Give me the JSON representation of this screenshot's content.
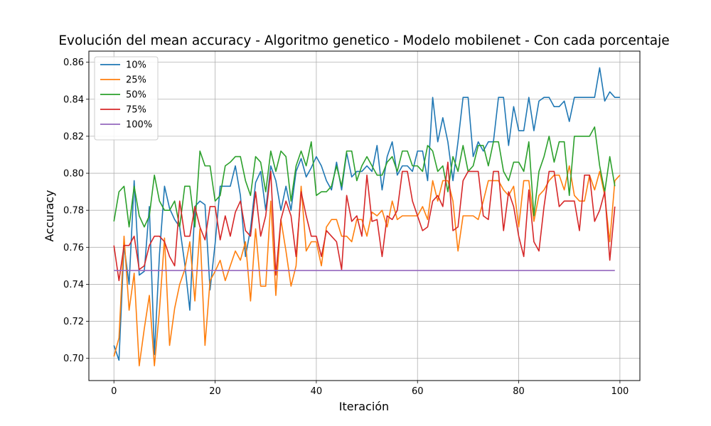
{
  "chart_data": {
    "type": "line",
    "title": "Evolución del mean accuracy - Algoritmo genetico - Modelo mobilenet - Con cada porcentaje",
    "xlabel": "Iteración",
    "ylabel": "Accuracy",
    "xlim": [
      -4.95,
      103.95
    ],
    "ylim": [
      0.688,
      0.866
    ],
    "xticks": [
      0,
      20,
      40,
      60,
      80,
      100
    ],
    "xtick_labels": [
      "0",
      "20",
      "40",
      "60",
      "80",
      "100"
    ],
    "yticks": [
      0.7,
      0.72,
      0.74,
      0.76,
      0.78,
      0.8,
      0.82,
      0.84,
      0.86
    ],
    "ytick_labels": [
      "0.70",
      "0.72",
      "0.74",
      "0.76",
      "0.78",
      "0.80",
      "0.82",
      "0.84",
      "0.86"
    ],
    "grid": true,
    "legend_position": "top-left",
    "series": [
      {
        "name": "10%",
        "color": "#1f77b4",
        "values": [
          0.707,
          0.699,
          0.761,
          0.74,
          0.796,
          0.745,
          0.747,
          0.782,
          0.702,
          0.756,
          0.793,
          0.781,
          0.775,
          0.771,
          0.751,
          0.726,
          0.782,
          0.785,
          0.783,
          0.737,
          0.762,
          0.793,
          0.793,
          0.793,
          0.804,
          0.788,
          0.755,
          0.77,
          0.795,
          0.801,
          0.78,
          0.804,
          0.796,
          0.78,
          0.793,
          0.78,
          0.801,
          0.808,
          0.798,
          0.803,
          0.809,
          0.804,
          0.796,
          0.791,
          0.806,
          0.791,
          0.811,
          0.798,
          0.801,
          0.801,
          0.804,
          0.801,
          0.815,
          0.791,
          0.809,
          0.817,
          0.799,
          0.804,
          0.804,
          0.801,
          0.812,
          0.812,
          0.796,
          0.841,
          0.817,
          0.83,
          0.817,
          0.796,
          0.817,
          0.841,
          0.841,
          0.809,
          0.817,
          0.812,
          0.817,
          0.817,
          0.841,
          0.841,
          0.815,
          0.836,
          0.823,
          0.823,
          0.841,
          0.823,
          0.839,
          0.841,
          0.841,
          0.836,
          0.836,
          0.839,
          0.828,
          0.841,
          0.841,
          0.841,
          0.841,
          0.841,
          0.857,
          0.839,
          0.844,
          0.841,
          0.841
        ]
      },
      {
        "name": "25%",
        "color": "#ff7f0e",
        "values": [
          0.701,
          0.711,
          0.766,
          0.726,
          0.746,
          0.696,
          0.716,
          0.734,
          0.696,
          0.726,
          0.765,
          0.707,
          0.727,
          0.74,
          0.748,
          0.763,
          0.731,
          0.77,
          0.707,
          0.742,
          0.747,
          0.753,
          0.742,
          0.75,
          0.758,
          0.753,
          0.763,
          0.731,
          0.77,
          0.739,
          0.739,
          0.785,
          0.734,
          0.775,
          0.758,
          0.739,
          0.75,
          0.793,
          0.758,
          0.763,
          0.763,
          0.75,
          0.771,
          0.775,
          0.775,
          0.766,
          0.766,
          0.763,
          0.775,
          0.775,
          0.766,
          0.779,
          0.777,
          0.78,
          0.771,
          0.785,
          0.775,
          0.777,
          0.777,
          0.777,
          0.777,
          0.782,
          0.775,
          0.796,
          0.785,
          0.796,
          0.796,
          0.785,
          0.758,
          0.777,
          0.777,
          0.777,
          0.775,
          0.785,
          0.796,
          0.796,
          0.796,
          0.791,
          0.788,
          0.793,
          0.771,
          0.796,
          0.796,
          0.774,
          0.788,
          0.791,
          0.796,
          0.799,
          0.799,
          0.791,
          0.804,
          0.788,
          0.785,
          0.785,
          0.799,
          0.791,
          0.801,
          0.788,
          0.763,
          0.796,
          0.799
        ]
      },
      {
        "name": "50%",
        "color": "#2ca02c",
        "values": [
          0.774,
          0.79,
          0.793,
          0.771,
          0.793,
          0.777,
          0.771,
          0.777,
          0.799,
          0.785,
          0.78,
          0.78,
          0.785,
          0.771,
          0.793,
          0.793,
          0.771,
          0.812,
          0.804,
          0.804,
          0.785,
          0.788,
          0.804,
          0.806,
          0.809,
          0.809,
          0.796,
          0.788,
          0.809,
          0.806,
          0.79,
          0.812,
          0.801,
          0.812,
          0.809,
          0.785,
          0.804,
          0.812,
          0.804,
          0.817,
          0.788,
          0.79,
          0.79,
          0.793,
          0.804,
          0.793,
          0.812,
          0.812,
          0.796,
          0.804,
          0.809,
          0.804,
          0.799,
          0.799,
          0.806,
          0.809,
          0.801,
          0.812,
          0.812,
          0.804,
          0.804,
          0.801,
          0.815,
          0.812,
          0.801,
          0.804,
          0.79,
          0.809,
          0.801,
          0.815,
          0.801,
          0.804,
          0.815,
          0.815,
          0.804,
          0.817,
          0.817,
          0.801,
          0.796,
          0.806,
          0.806,
          0.801,
          0.817,
          0.777,
          0.801,
          0.809,
          0.82,
          0.806,
          0.817,
          0.817,
          0.788,
          0.82,
          0.82,
          0.82,
          0.82,
          0.825,
          0.804,
          0.79,
          0.809,
          0.793
        ]
      },
      {
        "name": "75%",
        "color": "#d62728",
        "values": [
          0.761,
          0.742,
          0.761,
          0.761,
          0.766,
          0.748,
          0.75,
          0.761,
          0.766,
          0.766,
          0.763,
          0.755,
          0.75,
          0.785,
          0.766,
          0.766,
          0.782,
          0.771,
          0.764,
          0.782,
          0.782,
          0.764,
          0.777,
          0.766,
          0.779,
          0.785,
          0.769,
          0.766,
          0.79,
          0.766,
          0.777,
          0.801,
          0.745,
          0.775,
          0.785,
          0.777,
          0.755,
          0.79,
          0.777,
          0.766,
          0.766,
          0.755,
          0.769,
          0.766,
          0.763,
          0.748,
          0.788,
          0.774,
          0.777,
          0.766,
          0.799,
          0.774,
          0.775,
          0.755,
          0.777,
          0.775,
          0.78,
          0.801,
          0.801,
          0.785,
          0.777,
          0.769,
          0.771,
          0.785,
          0.788,
          0.782,
          0.806,
          0.769,
          0.771,
          0.796,
          0.801,
          0.801,
          0.801,
          0.777,
          0.775,
          0.801,
          0.801,
          0.769,
          0.79,
          0.782,
          0.766,
          0.755,
          0.791,
          0.763,
          0.758,
          0.782,
          0.801,
          0.801,
          0.782,
          0.785,
          0.785,
          0.785,
          0.769,
          0.799,
          0.799,
          0.774,
          0.78,
          0.79,
          0.753,
          0.782
        ]
      },
      {
        "name": "100%",
        "color": "#9467bd",
        "values": [
          0.7475,
          0.7475,
          0.7475,
          0.7475,
          0.7475,
          0.7475,
          0.7475,
          0.7475,
          0.7475,
          0.7475,
          0.7475,
          0.7475,
          0.7475,
          0.7475,
          0.7475,
          0.7475,
          0.7475,
          0.7475,
          0.7475,
          0.7475,
          0.7475,
          0.7475,
          0.7475,
          0.7475,
          0.7475,
          0.7475,
          0.7475,
          0.7475,
          0.7475,
          0.7475,
          0.7475,
          0.7475,
          0.7475,
          0.7475,
          0.7475,
          0.7475,
          0.7475,
          0.7475,
          0.7475,
          0.7475,
          0.7475,
          0.7475,
          0.7475,
          0.7475,
          0.7475,
          0.7475,
          0.7475,
          0.7475,
          0.7475,
          0.7475,
          0.7475,
          0.7475,
          0.7475,
          0.7475,
          0.7475,
          0.7475,
          0.7475,
          0.7475,
          0.7475,
          0.7475,
          0.7475,
          0.7475,
          0.7475,
          0.7475,
          0.7475,
          0.7475,
          0.7475,
          0.7475,
          0.7475,
          0.7475,
          0.7475,
          0.7475,
          0.7475,
          0.7475,
          0.7475,
          0.7475,
          0.7475,
          0.7475,
          0.7475,
          0.7475,
          0.7475,
          0.7475,
          0.7475,
          0.7475,
          0.7475,
          0.7475,
          0.7475,
          0.7475,
          0.7475,
          0.7475,
          0.7475,
          0.7475,
          0.7475,
          0.7475,
          0.7475,
          0.7475,
          0.7475,
          0.7475,
          0.7475,
          0.7475
        ]
      }
    ]
  }
}
